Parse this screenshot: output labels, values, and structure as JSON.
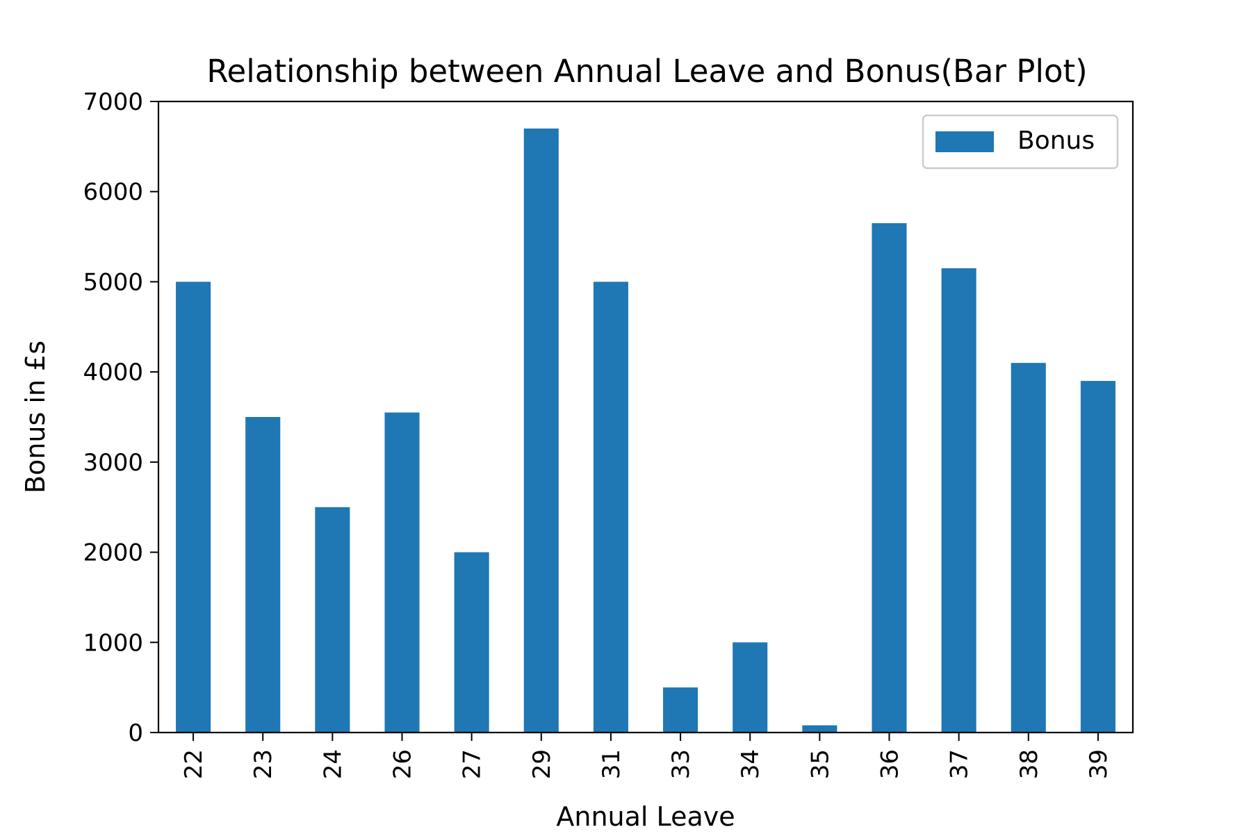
{
  "chart_data": {
    "type": "bar",
    "title": "Relationship between Annual Leave and Bonus(Bar Plot)",
    "xlabel": "Annual Leave",
    "ylabel": "Bonus in £s",
    "categories": [
      "22",
      "23",
      "24",
      "26",
      "27",
      "29",
      "31",
      "33",
      "34",
      "35",
      "36",
      "37",
      "38",
      "39"
    ],
    "series": [
      {
        "name": "Bonus",
        "color": "#1f77b4",
        "values": [
          5000,
          3500,
          2500,
          3550,
          2000,
          6700,
          5000,
          500,
          1000,
          80,
          5650,
          5150,
          4100,
          3900
        ]
      }
    ],
    "ylim": [
      0,
      7000
    ],
    "yticks": [
      0,
      1000,
      2000,
      3000,
      4000,
      5000,
      6000,
      7000
    ],
    "grid": false,
    "legend_position": "top-right"
  }
}
